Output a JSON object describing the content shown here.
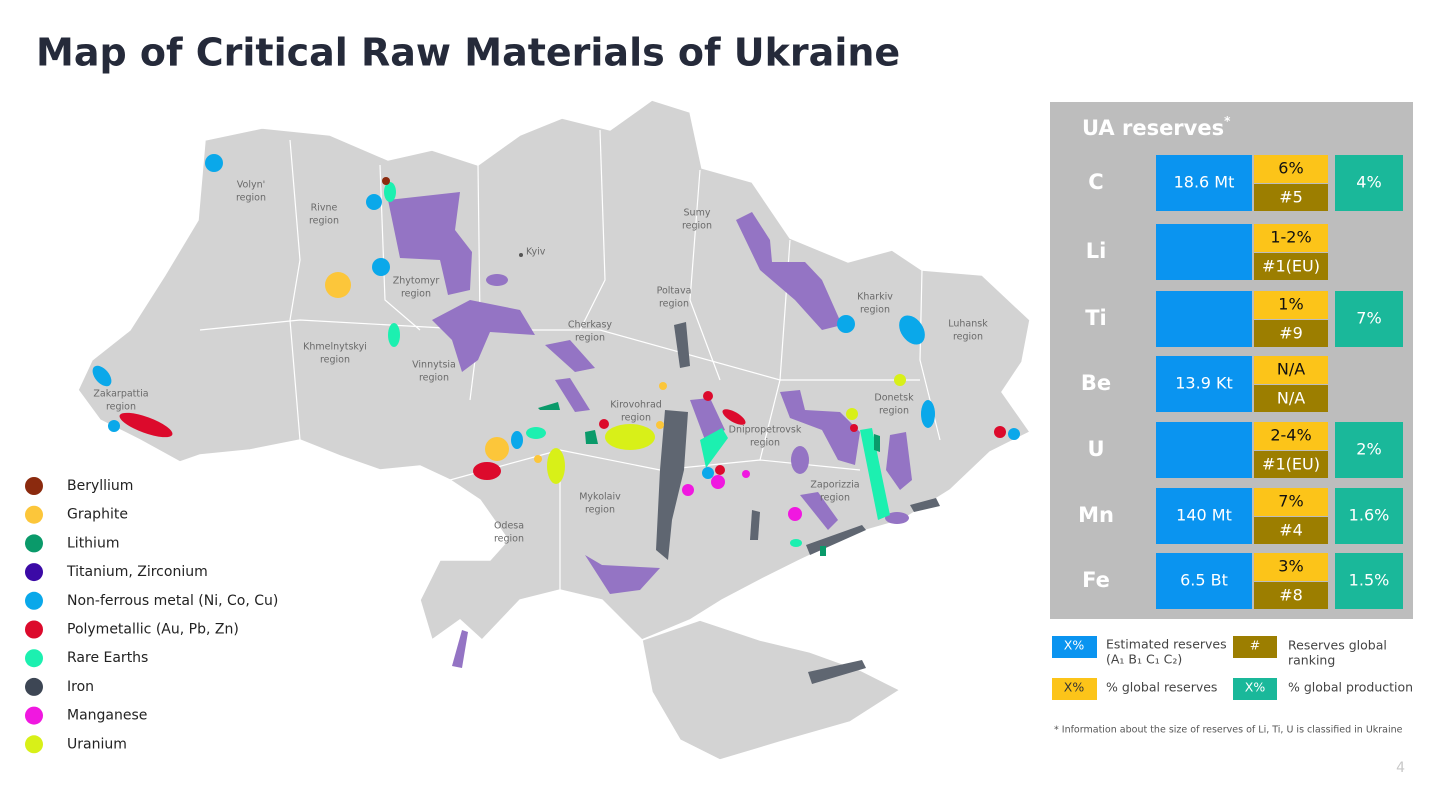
{
  "title": "Map of Critical Raw Materials of Ukraine",
  "page_number": "4",
  "map": {
    "capital": "Kyiv",
    "regions": [
      {
        "name": "Volyn'",
        "suffix": "region"
      },
      {
        "name": "Rivne",
        "suffix": "region"
      },
      {
        "name": "Zhytomyr",
        "suffix": "region"
      },
      {
        "name": "Sumy",
        "suffix": "region"
      },
      {
        "name": "Kharkiv",
        "suffix": "region"
      },
      {
        "name": "Luhansk",
        "suffix": "region"
      },
      {
        "name": "Poltava",
        "suffix": "region"
      },
      {
        "name": "Cherkasy",
        "suffix": "region"
      },
      {
        "name": "Khmelnytskyi",
        "suffix": "region"
      },
      {
        "name": "Vinnytsia",
        "suffix": "region"
      },
      {
        "name": "Kirovohrad",
        "suffix": "region"
      },
      {
        "name": "Dnipropetrovsk",
        "suffix": "region"
      },
      {
        "name": "Donetsk",
        "suffix": "region"
      },
      {
        "name": "Zakarpattia",
        "suffix": "region"
      },
      {
        "name": "Zaporizzia",
        "suffix": "region"
      },
      {
        "name": "Mykolaiv",
        "suffix": "region"
      },
      {
        "name": "Odesa",
        "suffix": "region"
      }
    ]
  },
  "legend": [
    {
      "label": "Beryllium",
      "color": "#8b2a0e"
    },
    {
      "label": "Graphite",
      "color": "#fcc63a"
    },
    {
      "label": "Lithium",
      "color": "#0a9a6a"
    },
    {
      "label": "Titanium, Zirconium",
      "color": "#3b0aa6"
    },
    {
      "label": "Non-ferrous metal (Ni, Co, Cu)",
      "color": "#0aa8ea"
    },
    {
      "label": "Polymetallic (Au, Pb, Zn)",
      "color": "#dc0a2c"
    },
    {
      "label": "Rare Earths",
      "color": "#1cf0b0"
    },
    {
      "label": "Iron",
      "color": "#3d4654"
    },
    {
      "label": "Manganese",
      "color": "#f018e0"
    },
    {
      "label": "Uranium",
      "color": "#d8f018"
    }
  ],
  "reserves": {
    "title": "UA reserves",
    "title_mark": "*",
    "rows": [
      {
        "element": "C",
        "estimated": "18.6 Mt",
        "global_share": "6%",
        "ranking": "#5",
        "production": "4%"
      },
      {
        "element": "Li",
        "global_share": "1-2%",
        "ranking": "#1(EU)"
      },
      {
        "element": "Ti",
        "global_share": "1%",
        "ranking": "#9",
        "production": "7%"
      },
      {
        "element": "Be",
        "estimated": "13.9 Kt",
        "global_share": "N/A",
        "ranking": "N/A"
      },
      {
        "element": "U",
        "global_share": "2-4%",
        "ranking": "#1(EU)",
        "production": "2%"
      },
      {
        "element": "Mn",
        "estimated": "140 Mt",
        "global_share": "7%",
        "ranking": "#4",
        "production": "1.6%"
      },
      {
        "element": "Fe",
        "estimated": "6.5 Bt",
        "global_share": "3%",
        "ranking": "#8",
        "production": "1.5%"
      }
    ],
    "key": {
      "estimated": {
        "symbol": "X%",
        "label": "Estimated reserves",
        "detail": "(A₁ B₁ C₁ C₂)"
      },
      "ranking": {
        "symbol": "#",
        "label": "Reserves global",
        "detail": "ranking"
      },
      "global_share": {
        "symbol": "X%",
        "label": "% global reserves"
      },
      "production": {
        "symbol": "X%",
        "label": "% global production"
      }
    },
    "footnote": "* Information about the size of reserves of Li, Ti, U is classified in Ukraine"
  }
}
